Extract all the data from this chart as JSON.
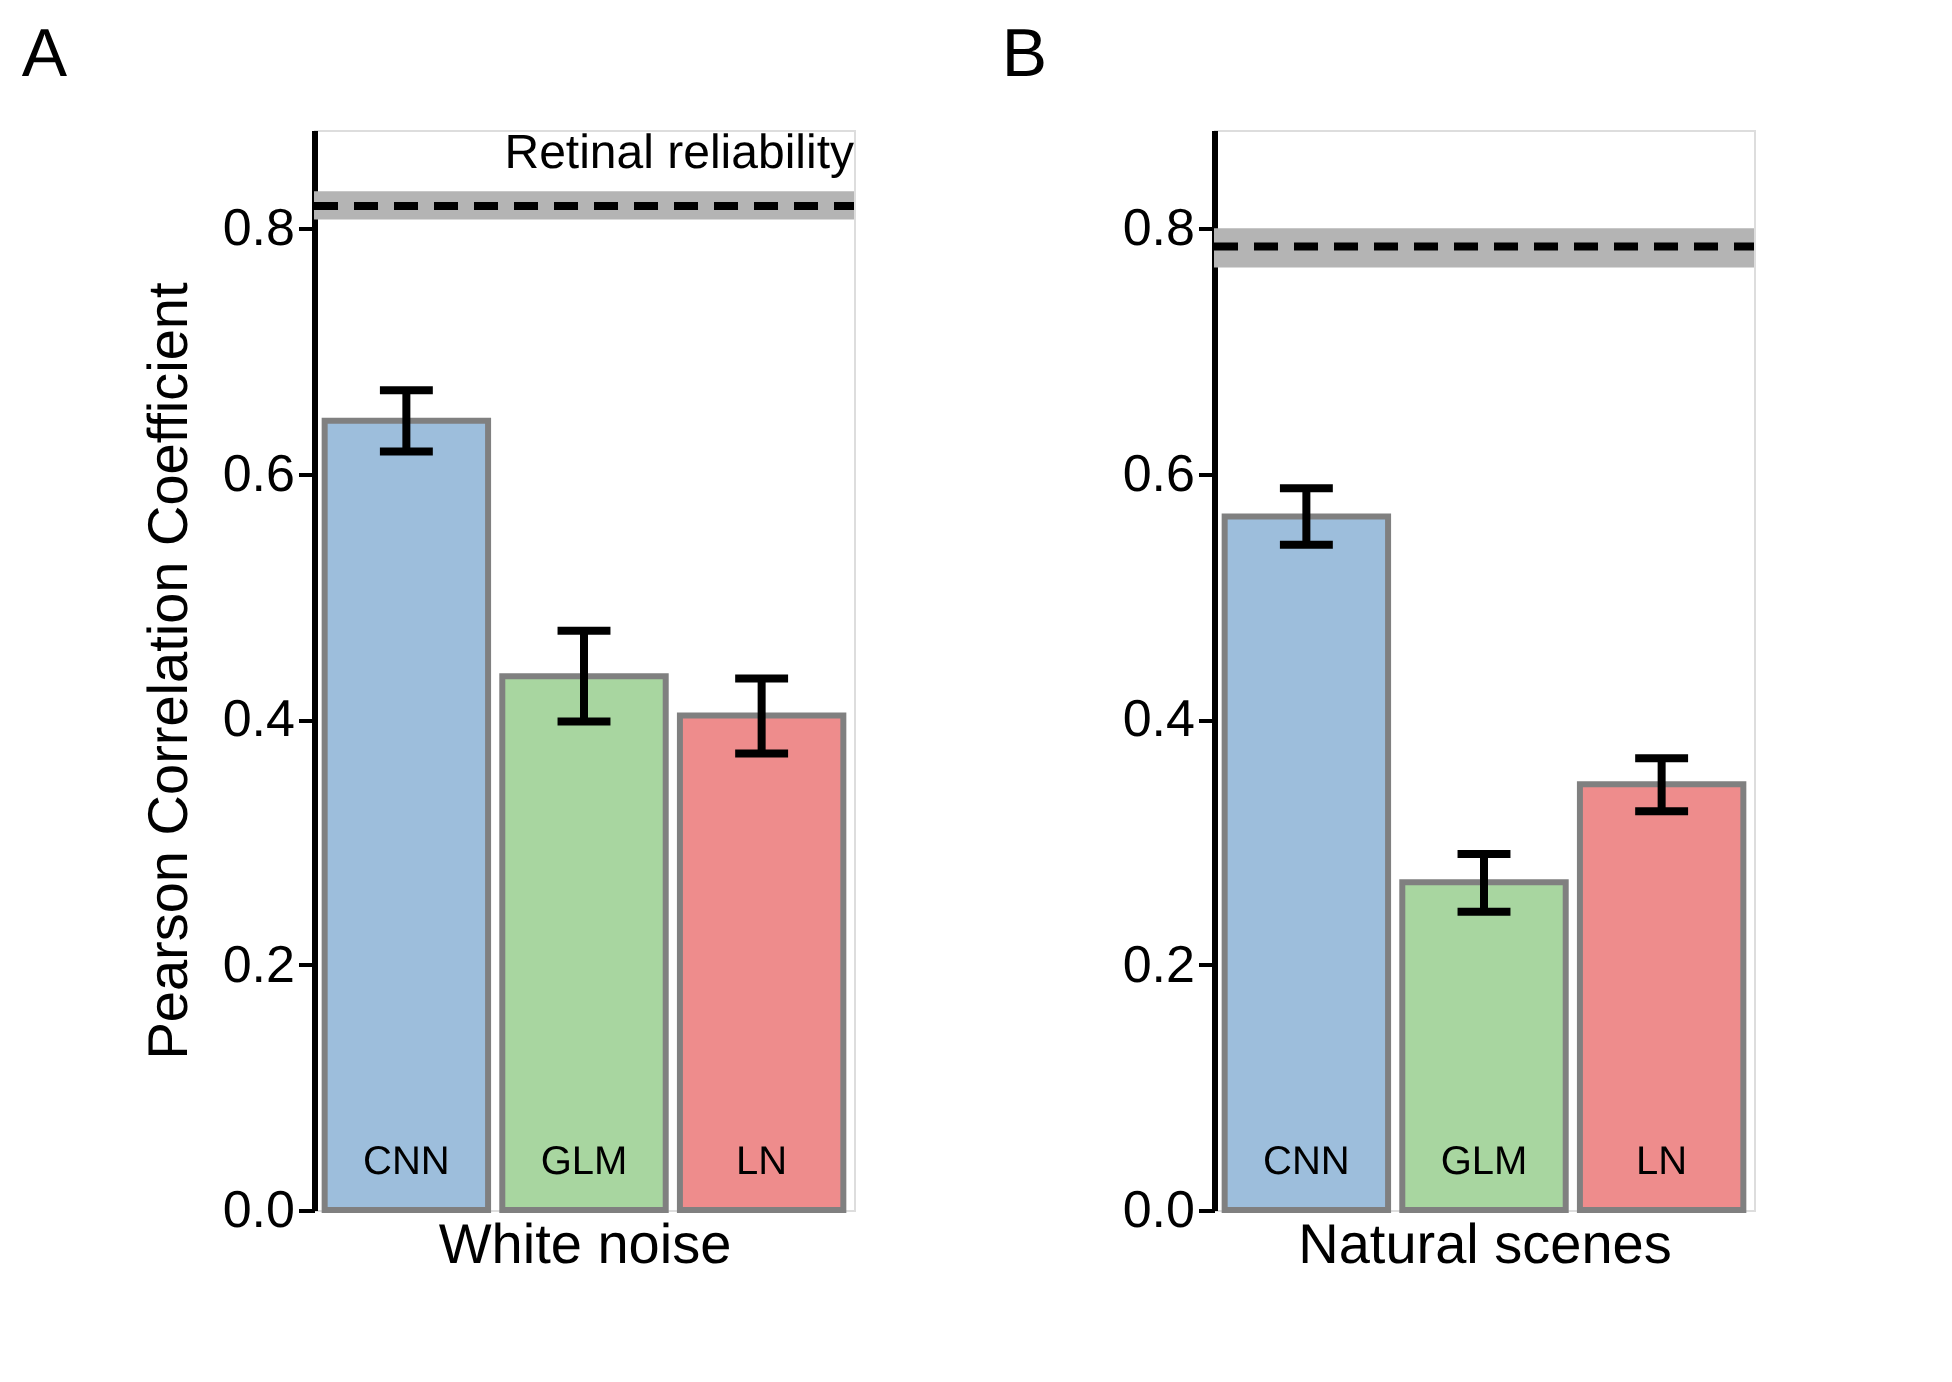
{
  "chart_data": [
    {
      "type": "bar",
      "title": "A",
      "xlabel": "White noise",
      "ylabel": "Pearson Correlation Coefficient",
      "categories": [
        "CNN",
        "GLM",
        "LN"
      ],
      "values": [
        0.643,
        0.435,
        0.403
      ],
      "colors": [
        "#9dbedc",
        "#a8d6a0",
        "#ee8c8c"
      ],
      "errors": [
        [
          0.618,
          0.668
        ],
        [
          0.398,
          0.472
        ],
        [
          0.372,
          0.433
        ]
      ],
      "ylim": [
        0,
        0.88
      ],
      "yticks": [
        {
          "value": 0,
          "label": "0.0"
        },
        0.2,
        0.4,
        0.6,
        0.8
      ],
      "ref_lines": [
        {
          "axis": "y",
          "value": 0.818,
          "label": "Retinal reliability",
          "color": "#000000",
          "line_style": "dashed"
        }
      ],
      "bands": [
        {
          "axis": "y",
          "from": 0.807,
          "to": 0.83,
          "color": "#b4b4b4"
        }
      ],
      "grid": false
    },
    {
      "type": "bar",
      "title": "B",
      "xlabel": "Natural scenes",
      "categories": [
        "CNN",
        "GLM",
        "LN"
      ],
      "values": [
        0.565,
        0.267,
        0.347
      ],
      "colors": [
        "#9dbedc",
        "#a8d6a0",
        "#ee8c8c"
      ],
      "errors": [
        [
          0.542,
          0.588
        ],
        [
          0.243,
          0.29
        ],
        [
          0.325,
          0.368
        ]
      ],
      "ylim": [
        0,
        0.88
      ],
      "yticks": [
        {
          "value": 0,
          "label": "0.0"
        },
        0.2,
        0.4,
        0.6,
        0.8
      ],
      "ref_lines": [
        {
          "axis": "y",
          "value": 0.785,
          "color": "#000000",
          "line_style": "dashed"
        }
      ],
      "bands": [
        {
          "axis": "y",
          "from": 0.768,
          "to": 0.8,
          "color": "#b4b4b4"
        }
      ],
      "grid": false
    }
  ]
}
